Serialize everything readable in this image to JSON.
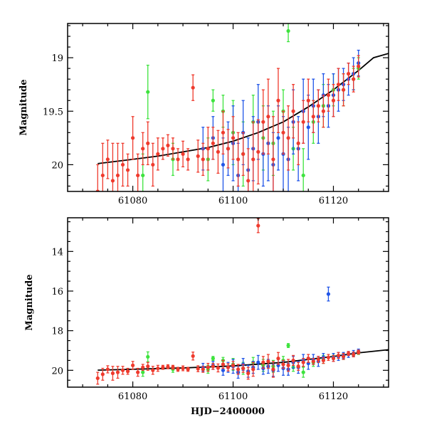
{
  "colors": {
    "red": "#ef3a2d",
    "green": "#3ee33e",
    "blue": "#2055e8",
    "model": "#000000",
    "frame": "#000000"
  },
  "chart_data": [
    {
      "type": "scatter",
      "panel": "top",
      "xlabel": "",
      "ylabel": "Magnitude",
      "xlim": [
        61067,
        61131
      ],
      "ylim": [
        20.25,
        18.68
      ],
      "y_inverted": true,
      "grid": false,
      "xticks": [
        61080,
        61100,
        61120
      ],
      "xtick_labels": [
        "61080",
        "61100",
        "61120"
      ],
      "yticks": [
        19,
        19.5,
        20
      ],
      "ytick_labels": [
        "19",
        "19.5",
        "20"
      ],
      "model_curve": {
        "x": [
          61073,
          61080,
          61085,
          61090,
          61095,
          61100,
          61105,
          61110,
          61115,
          61120,
          61125,
          61128,
          61131
        ],
        "y": [
          19.99,
          19.95,
          19.92,
          19.88,
          19.84,
          19.78,
          19.7,
          19.6,
          19.46,
          19.3,
          19.12,
          19.0,
          18.96
        ]
      },
      "series": [
        {
          "name": "red",
          "color": "#ef3a2d",
          "x": [
            61073,
            61074,
            61075,
            61076,
            61077,
            61078,
            61079,
            61080,
            61081,
            61082,
            61083,
            61084,
            61085,
            61086,
            61087,
            61088,
            61089,
            61090,
            61091,
            61092,
            61093,
            61094,
            61095,
            61096,
            61097,
            61098,
            61099,
            61100,
            61101,
            61102,
            61103,
            61104,
            61105,
            61106,
            61107,
            61108,
            61109,
            61110,
            61111,
            61112,
            61113,
            61114,
            61115,
            61116,
            61117,
            61118,
            61119,
            61120,
            61121,
            61122,
            61123,
            61124,
            61125
          ],
          "y": [
            20.25,
            20.1,
            19.95,
            20.15,
            20.1,
            20.0,
            20.05,
            19.75,
            20.1,
            19.85,
            19.8,
            20.0,
            19.9,
            19.85,
            19.82,
            19.85,
            19.95,
            19.9,
            19.95,
            19.28,
            19.92,
            19.95,
            19.85,
            19.8,
            19.88,
            19.7,
            19.85,
            19.75,
            19.95,
            19.9,
            20.15,
            19.95,
            19.88,
            19.6,
            19.55,
            19.95,
            19.4,
            19.7,
            19.75,
            19.5,
            19.8,
            19.6,
            19.4,
            19.55,
            19.45,
            19.5,
            19.35,
            19.4,
            19.25,
            19.3,
            19.15,
            19.2,
            19.08
          ],
          "yerr": [
            0.25,
            0.3,
            0.18,
            0.35,
            0.3,
            0.2,
            0.15,
            0.2,
            0.2,
            0.15,
            0.2,
            0.2,
            0.15,
            0.1,
            0.1,
            0.1,
            0.1,
            0.12,
            0.1,
            0.12,
            0.15,
            0.15,
            0.2,
            0.15,
            0.2,
            0.2,
            0.18,
            0.2,
            0.25,
            0.2,
            0.3,
            0.35,
            0.3,
            0.3,
            0.35,
            0.4,
            0.3,
            0.2,
            0.3,
            0.25,
            0.2,
            0.2,
            0.2,
            0.15,
            0.15,
            0.15,
            0.15,
            0.15,
            0.15,
            0.15,
            0.1,
            0.12,
            0.1
          ]
        },
        {
          "name": "green",
          "color": "#3ee33e",
          "x": [
            61082,
            61083,
            61088,
            61095,
            61096,
            61098,
            61100,
            61102,
            61104,
            61106,
            61108,
            61110,
            61111,
            61112,
            61114,
            61116,
            61118,
            61120,
            61122,
            61124,
            61125
          ],
          "y": [
            20.1,
            19.32,
            19.95,
            19.95,
            19.4,
            19.5,
            19.7,
            19.9,
            19.6,
            19.75,
            19.8,
            19.5,
            18.75,
            19.85,
            20.1,
            19.6,
            19.45,
            19.3,
            19.3,
            19.2,
            19.1
          ],
          "yerr": [
            0.2,
            0.25,
            0.15,
            0.2,
            0.1,
            0.15,
            0.3,
            0.3,
            0.25,
            0.3,
            0.3,
            0.2,
            0.1,
            0.2,
            0.25,
            0.2,
            0.2,
            0.15,
            0.15,
            0.1,
            0.1
          ]
        },
        {
          "name": "blue",
          "color": "#2055e8",
          "x": [
            61094,
            61096,
            61098,
            61099,
            61100,
            61101,
            61102,
            61103,
            61104,
            61105,
            61106,
            61107,
            61108,
            61109,
            61110,
            61111,
            61112,
            61113,
            61114,
            61115,
            61116,
            61117,
            61118,
            61119,
            61120,
            61121,
            61122,
            61123,
            61124,
            61125
          ],
          "y": [
            19.85,
            19.75,
            20.0,
            19.85,
            19.8,
            20.1,
            19.7,
            20.05,
            19.85,
            19.6,
            19.9,
            19.8,
            20.0,
            19.75,
            19.9,
            19.95,
            19.6,
            19.85,
            19.5,
            19.65,
            19.45,
            19.55,
            19.35,
            19.45,
            19.35,
            19.3,
            19.25,
            19.2,
            19.15,
            19.05
          ],
          "yerr": [
            0.2,
            0.2,
            0.25,
            0.25,
            0.35,
            0.3,
            0.3,
            0.3,
            0.3,
            0.35,
            0.3,
            0.35,
            0.3,
            0.3,
            0.35,
            0.3,
            0.3,
            0.3,
            0.3,
            0.3,
            0.25,
            0.25,
            0.2,
            0.2,
            0.2,
            0.2,
            0.15,
            0.15,
            0.15,
            0.12
          ]
        }
      ]
    },
    {
      "type": "scatter",
      "panel": "bottom",
      "xlabel": "HJD−2400000",
      "ylabel": "Magnitude",
      "xlim": [
        61067,
        61131
      ],
      "ylim": [
        20.85,
        12.3
      ],
      "y_inverted": true,
      "grid": false,
      "xticks": [
        61080,
        61100,
        61120
      ],
      "xtick_labels": [
        "61080",
        "61100",
        "61120"
      ],
      "yticks": [
        14,
        16,
        18,
        20
      ],
      "ytick_labels": [
        "14",
        "16",
        "18",
        "20"
      ],
      "model_curve": {
        "x": [
          61073,
          61080,
          61090,
          61100,
          61110,
          61120,
          61125,
          61131
        ],
        "y": [
          19.99,
          19.95,
          19.88,
          19.78,
          19.6,
          19.3,
          19.12,
          18.96
        ]
      },
      "series": [
        {
          "name": "red",
          "color": "#ef3a2d",
          "x": [
            61073,
            61074,
            61075,
            61076,
            61077,
            61078,
            61079,
            61080,
            61081,
            61082,
            61083,
            61084,
            61085,
            61086,
            61087,
            61088,
            61089,
            61090,
            61091,
            61092,
            61093,
            61094,
            61095,
            61096,
            61097,
            61098,
            61099,
            61100,
            61101,
            61102,
            61103,
            61104,
            61105,
            61106,
            61107,
            61108,
            61109,
            61110,
            61111,
            61112,
            61113,
            61114,
            61115,
            61116,
            61117,
            61118,
            61119,
            61120,
            61121,
            61122,
            61123,
            61124,
            61125
          ],
          "y": [
            20.4,
            20.2,
            19.95,
            20.15,
            20.1,
            20.0,
            20.05,
            19.75,
            20.1,
            19.85,
            19.8,
            20.0,
            19.9,
            19.85,
            19.82,
            19.85,
            19.95,
            19.9,
            19.95,
            19.28,
            19.92,
            19.95,
            19.85,
            19.8,
            19.88,
            19.7,
            19.85,
            19.75,
            19.95,
            19.9,
            20.15,
            19.95,
            12.7,
            19.6,
            19.55,
            19.95,
            19.4,
            19.7,
            19.75,
            19.5,
            19.8,
            19.6,
            19.4,
            19.55,
            19.45,
            19.5,
            19.35,
            19.4,
            19.25,
            19.3,
            19.15,
            19.2,
            19.08
          ],
          "yerr": [
            0.3,
            0.3,
            0.18,
            0.35,
            0.3,
            0.2,
            0.15,
            0.2,
            0.2,
            0.15,
            0.2,
            0.2,
            0.15,
            0.1,
            0.1,
            0.1,
            0.1,
            0.12,
            0.1,
            0.2,
            0.15,
            0.15,
            0.2,
            0.15,
            0.2,
            0.2,
            0.18,
            0.2,
            0.25,
            0.2,
            0.3,
            0.35,
            0.35,
            0.3,
            0.35,
            0.4,
            0.3,
            0.2,
            0.3,
            0.25,
            0.2,
            0.2,
            0.2,
            0.15,
            0.15,
            0.15,
            0.15,
            0.15,
            0.15,
            0.15,
            0.1,
            0.12,
            0.1
          ]
        },
        {
          "name": "green",
          "color": "#3ee33e",
          "x": [
            61082,
            61083,
            61088,
            61095,
            61096,
            61098,
            61100,
            61102,
            61104,
            61106,
            61108,
            61110,
            61111,
            61112,
            61114,
            61116,
            61118,
            61120,
            61122,
            61124,
            61125
          ],
          "y": [
            20.1,
            19.32,
            19.95,
            19.95,
            19.4,
            19.5,
            19.7,
            19.9,
            19.6,
            19.75,
            19.8,
            19.5,
            18.75,
            19.85,
            20.1,
            19.6,
            19.45,
            19.3,
            19.3,
            19.2,
            19.1
          ],
          "yerr": [
            0.2,
            0.25,
            0.15,
            0.2,
            0.1,
            0.15,
            0.3,
            0.3,
            0.25,
            0.3,
            0.3,
            0.2,
            0.1,
            0.2,
            0.25,
            0.2,
            0.2,
            0.15,
            0.15,
            0.1,
            0.1
          ]
        },
        {
          "name": "blue",
          "color": "#2055e8",
          "x": [
            61094,
            61096,
            61098,
            61099,
            61100,
            61101,
            61102,
            61103,
            61104,
            61105,
            61106,
            61107,
            61108,
            61109,
            61110,
            61111,
            61112,
            61113,
            61114,
            61115,
            61116,
            61117,
            61118,
            61119,
            61120,
            61121,
            61122,
            61123,
            61124,
            61125
          ],
          "y": [
            19.85,
            19.75,
            20.0,
            19.85,
            19.8,
            20.1,
            19.7,
            20.05,
            19.85,
            19.6,
            19.9,
            19.8,
            20.0,
            19.75,
            19.9,
            19.95,
            19.6,
            19.85,
            19.5,
            19.65,
            19.45,
            19.55,
            19.35,
            16.15,
            19.35,
            19.3,
            19.25,
            19.2,
            19.15,
            19.05
          ],
          "yerr": [
            0.2,
            0.2,
            0.25,
            0.25,
            0.35,
            0.3,
            0.3,
            0.3,
            0.3,
            0.35,
            0.3,
            0.35,
            0.3,
            0.3,
            0.35,
            0.3,
            0.3,
            0.3,
            0.3,
            0.3,
            0.25,
            0.25,
            0.2,
            0.35,
            0.2,
            0.2,
            0.15,
            0.15,
            0.15,
            0.12
          ]
        }
      ]
    }
  ]
}
